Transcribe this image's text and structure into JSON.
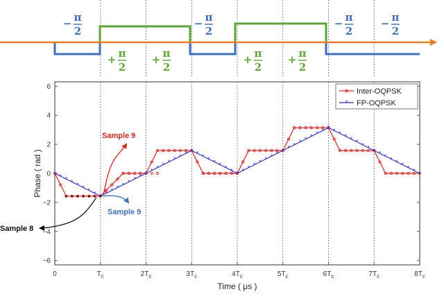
{
  "top_panel": {
    "symbols": [
      {
        "sign": "−",
        "num": "π",
        "den": "2",
        "color": "#3a6fc4"
      },
      {
        "sign": "+",
        "num": "π",
        "den": "2",
        "color": "#5aa832"
      },
      {
        "sign": "+",
        "num": "π",
        "den": "2",
        "color": "#5aa832"
      },
      {
        "sign": "−",
        "num": "π",
        "den": "2",
        "color": "#3a6fc4"
      },
      {
        "sign": "+",
        "num": "π",
        "den": "2",
        "color": "#5aa832"
      },
      {
        "sign": "+",
        "num": "π",
        "den": "2",
        "color": "#5aa832"
      },
      {
        "sign": "−",
        "num": "π",
        "den": "2",
        "color": "#3a6fc4"
      },
      {
        "sign": "−",
        "num": "π",
        "den": "2",
        "color": "#3a6fc4"
      }
    ],
    "colors": {
      "blue": "#3a6fc4",
      "green": "#5aa832",
      "arrow": "#f07c1e"
    }
  },
  "chart_data": {
    "type": "line",
    "xlabel": "Time ( μs )",
    "ylabel": "Phase ( rad )",
    "xlim": [
      0,
      8
    ],
    "ylim": [
      -6.3,
      6.3
    ],
    "xticks": [
      {
        "v": 0,
        "main": "0",
        "sub": ""
      },
      {
        "v": 1,
        "main": "T",
        "sub": "c"
      },
      {
        "v": 2,
        "main": "2T",
        "sub": "c"
      },
      {
        "v": 3,
        "main": "3T",
        "sub": "c"
      },
      {
        "v": 4,
        "main": "4T",
        "sub": "c"
      },
      {
        "v": 5,
        "main": "5T",
        "sub": "c"
      },
      {
        "v": 6,
        "main": "6T",
        "sub": "c"
      },
      {
        "v": 7,
        "main": "7T",
        "sub": "c"
      },
      {
        "v": 8,
        "main": "8T",
        "sub": "c"
      }
    ],
    "yticks": [
      6,
      4,
      2,
      0,
      -2,
      -4,
      -6
    ],
    "series": [
      {
        "name": "Inter-OQPSK",
        "color": "#e8221c",
        "points": [
          [
            0,
            0
          ],
          [
            0.25,
            -1.5708
          ],
          [
            1,
            -1.5708
          ],
          [
            1.5,
            0
          ],
          [
            2,
            0
          ],
          [
            2.25,
            1.5708
          ],
          [
            3,
            1.5708
          ],
          [
            3.25,
            0
          ],
          [
            4,
            0
          ],
          [
            4.25,
            1.5708
          ],
          [
            5,
            1.5708
          ],
          [
            5.25,
            3.1416
          ],
          [
            6,
            3.1416
          ],
          [
            6.25,
            1.5708
          ],
          [
            7,
            1.5708
          ],
          [
            7.25,
            0
          ],
          [
            8,
            0
          ]
        ]
      },
      {
        "name": "FP-OQPSK",
        "color": "#2b2bdc",
        "points": [
          [
            0,
            0
          ],
          [
            1,
            -1.5708
          ],
          [
            3,
            1.5708
          ],
          [
            4,
            0
          ],
          [
            6,
            3.1416
          ],
          [
            7,
            1.5708
          ],
          [
            8,
            0
          ]
        ]
      }
    ],
    "legend": "top-right",
    "grid": "vertical dotted at each T_c",
    "annotations": [
      {
        "text": "Sample 9",
        "color": "#e8221c"
      },
      {
        "text": "Sample 9",
        "color": "#3a6fc4"
      },
      {
        "text": "Sample 8",
        "color": "#111111"
      }
    ]
  }
}
